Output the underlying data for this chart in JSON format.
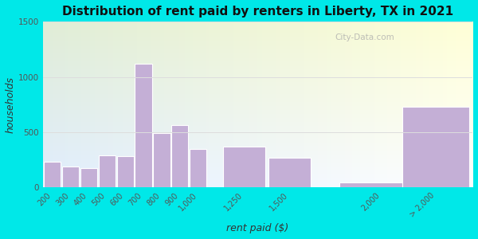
{
  "title": "Distribution of rent paid by renters in Liberty, TX in 2021",
  "xlabel": "rent paid ($)",
  "ylabel": "households",
  "bin_labels": [
    "200",
    "300",
    "400",
    "500",
    "600",
    "700",
    "800",
    "900",
    "1,000",
    "1,250",
    "1,500",
    "2,000",
    "> 2,000"
  ],
  "bin_lefts": [
    150,
    250,
    350,
    450,
    550,
    650,
    750,
    850,
    950,
    1125,
    1375,
    1750,
    2100
  ],
  "bin_widths": [
    100,
    100,
    100,
    100,
    100,
    100,
    100,
    100,
    100,
    250,
    250,
    500,
    400
  ],
  "values": [
    230,
    190,
    170,
    290,
    280,
    1120,
    490,
    560,
    350,
    370,
    270,
    40,
    730
  ],
  "bar_color": "#c4afd6",
  "bg_outer": "#00e8e8",
  "bg_plot": "#e6f0d8",
  "ylim": [
    0,
    1500
  ],
  "yticks": [
    0,
    500,
    1000,
    1500
  ],
  "xlim_left": 150,
  "xlim_right": 2500,
  "title_fontsize": 11,
  "axis_label_fontsize": 9,
  "tick_fontsize": 7,
  "watermark": "City-Data.com"
}
